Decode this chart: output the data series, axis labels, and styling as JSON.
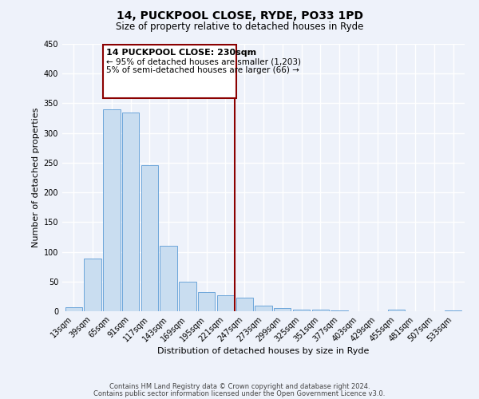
{
  "title": "14, PUCKPOOL CLOSE, RYDE, PO33 1PD",
  "subtitle": "Size of property relative to detached houses in Ryde",
  "xlabel": "Distribution of detached houses by size in Ryde",
  "ylabel": "Number of detached properties",
  "categories": [
    "13sqm",
    "39sqm",
    "65sqm",
    "91sqm",
    "117sqm",
    "143sqm",
    "169sqm",
    "195sqm",
    "221sqm",
    "247sqm",
    "273sqm",
    "299sqm",
    "325sqm",
    "351sqm",
    "377sqm",
    "403sqm",
    "429sqm",
    "455sqm",
    "481sqm",
    "507sqm",
    "533sqm"
  ],
  "values": [
    7,
    88,
    340,
    334,
    246,
    110,
    50,
    32,
    27,
    23,
    10,
    5,
    3,
    3,
    2,
    0,
    0,
    3,
    0,
    0,
    2
  ],
  "bar_color": "#c9ddf0",
  "bar_edge_color": "#5b9bd5",
  "ylim": [
    0,
    450
  ],
  "yticks": [
    0,
    50,
    100,
    150,
    200,
    250,
    300,
    350,
    400,
    450
  ],
  "vline_color": "#8b0000",
  "annotation_line1": "14 PUCKPOOL CLOSE: 230sqm",
  "annotation_line2": "← 95% of detached houses are smaller (1,203)",
  "annotation_line3": "5% of semi-detached houses are larger (66) →",
  "annotation_box_color": "#8b0000",
  "footer1": "Contains HM Land Registry data © Crown copyright and database right 2024.",
  "footer2": "Contains public sector information licensed under the Open Government Licence v3.0.",
  "background_color": "#eef2fa",
  "grid_color": "#ffffff",
  "title_fontsize": 10,
  "subtitle_fontsize": 8.5,
  "axis_label_fontsize": 8,
  "tick_fontsize": 7,
  "annotation_fontsize": 7.5,
  "footer_fontsize": 6
}
